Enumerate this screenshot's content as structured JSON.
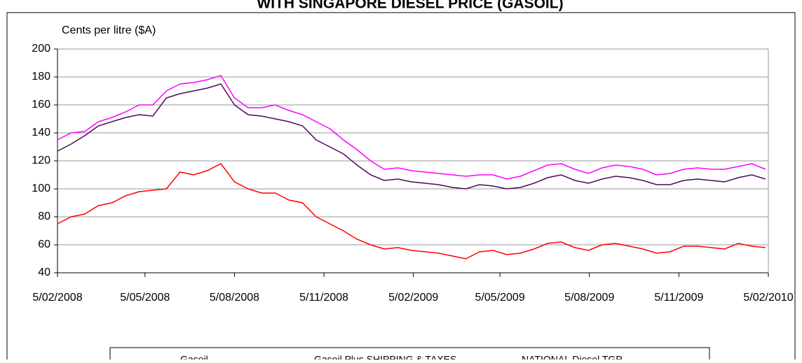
{
  "chart_data": {
    "type": "line",
    "title": "WITH SINGAPORE DIESEL PRICE (GASOIL)",
    "y_label": "Cents per litre ($A)",
    "x": [
      "2008-02-05",
      "2008-02-19",
      "2008-03-04",
      "2008-03-18",
      "2008-04-01",
      "2008-04-15",
      "2008-04-29",
      "2008-05-13",
      "2008-05-27",
      "2008-06-10",
      "2008-06-24",
      "2008-07-08",
      "2008-07-22",
      "2008-08-05",
      "2008-08-19",
      "2008-09-02",
      "2008-09-16",
      "2008-09-30",
      "2008-10-14",
      "2008-10-28",
      "2008-11-11",
      "2008-11-25",
      "2008-12-09",
      "2008-12-23",
      "2009-01-06",
      "2009-01-20",
      "2009-02-03",
      "2009-02-17",
      "2009-03-03",
      "2009-03-17",
      "2009-03-31",
      "2009-04-14",
      "2009-04-28",
      "2009-05-12",
      "2009-05-26",
      "2009-06-09",
      "2009-06-23",
      "2009-07-07",
      "2009-07-21",
      "2009-08-04",
      "2009-08-18",
      "2009-09-01",
      "2009-09-15",
      "2009-09-29",
      "2009-10-13",
      "2009-10-27",
      "2009-11-10",
      "2009-11-24",
      "2009-12-08",
      "2009-12-22",
      "2010-01-05",
      "2010-01-19",
      "2010-02-02"
    ],
    "series": [
      {
        "name": "Gasoil",
        "color": "#ff0000",
        "values": [
          75,
          80,
          82,
          88,
          90,
          95,
          98,
          99,
          100,
          112,
          110,
          113,
          118,
          105,
          100,
          97,
          97,
          92,
          90,
          80,
          75,
          70,
          64,
          60,
          57,
          58,
          56,
          55,
          54,
          52,
          50,
          55,
          56,
          53,
          54,
          57,
          61,
          62,
          58,
          56,
          60,
          61,
          59,
          57,
          54,
          55,
          59,
          59,
          58,
          57,
          61,
          59,
          58
        ]
      },
      {
        "name": "Gasoil Plus SHIPPING & TAXES",
        "color": "#4b0a5a",
        "values": [
          127,
          132,
          138,
          145,
          148,
          151,
          153,
          152,
          165,
          168,
          170,
          172,
          175,
          160,
          153,
          152,
          150,
          148,
          145,
          135,
          130,
          125,
          117,
          110,
          106,
          107,
          105,
          104,
          103,
          101,
          100,
          103,
          102,
          100,
          101,
          104,
          108,
          110,
          106,
          104,
          107,
          109,
          108,
          106,
          103,
          103,
          106,
          107,
          106,
          105,
          108,
          110,
          107
        ]
      },
      {
        "name": "NATIONAL Diesel TGP",
        "color": "#ff00ff",
        "values": [
          135,
          140,
          141,
          148,
          151,
          155,
          160,
          160,
          170,
          175,
          176,
          178,
          181,
          165,
          158,
          158,
          160,
          156,
          153,
          148,
          143,
          135,
          128,
          120,
          114,
          115,
          113,
          112,
          111,
          110,
          109,
          110,
          110,
          107,
          109,
          113,
          117,
          118,
          114,
          111,
          115,
          117,
          116,
          114,
          110,
          111,
          114,
          115,
          114,
          114,
          116,
          118,
          114
        ]
      }
    ],
    "xlim": [
      "2008-02-05",
      "2010-02-05"
    ],
    "xticks": [
      {
        "value": "2008-02-05",
        "label": "5/02/2008"
      },
      {
        "value": "2008-05-05",
        "label": "5/05/2008"
      },
      {
        "value": "2008-08-05",
        "label": "5/08/2008"
      },
      {
        "value": "2008-11-05",
        "label": "5/11/2008"
      },
      {
        "value": "2009-02-05",
        "label": "5/02/2009"
      },
      {
        "value": "2009-05-05",
        "label": "5/05/2009"
      },
      {
        "value": "2009-08-05",
        "label": "5/08/2009"
      },
      {
        "value": "2009-11-05",
        "label": "5/11/2009"
      },
      {
        "value": "2010-02-05",
        "label": "5/02/2010"
      }
    ],
    "ylim": [
      40,
      200
    ],
    "yticks": [
      40,
      60,
      80,
      100,
      120,
      140,
      160,
      180,
      200
    ],
    "grid": true,
    "legend": "bottom"
  }
}
